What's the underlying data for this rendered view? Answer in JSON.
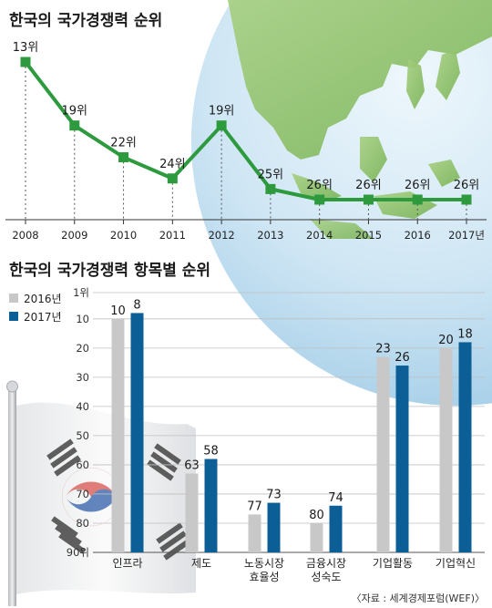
{
  "chart_data": [
    {
      "type": "line",
      "title": "한국의 국가경쟁력 순위",
      "x": [
        "2008",
        "2009",
        "2010",
        "2011",
        "2012",
        "2013",
        "2014",
        "2015",
        "2016",
        "2017년"
      ],
      "values": [
        13,
        19,
        22,
        24,
        19,
        25,
        26,
        26,
        26,
        26
      ],
      "data_labels": [
        "13위",
        "19위",
        "22위",
        "24위",
        "19위",
        "25위",
        "26위",
        "26위",
        "26위",
        "26위"
      ],
      "y_inverted": true,
      "ylim": [
        12,
        27
      ],
      "grid": false,
      "line_color": "#2e9a3e"
    },
    {
      "type": "bar",
      "title": "한국의 국가경쟁력 항목별 순위",
      "categories": [
        "인프라",
        "제도",
        "노동시장\n효율성",
        "금융시장\n성숙도",
        "기업활동",
        "기업혁신"
      ],
      "series": [
        {
          "name": "2016년",
          "values": [
            10,
            63,
            77,
            80,
            23,
            20
          ],
          "color": "#c8c8c8"
        },
        {
          "name": "2017년",
          "values": [
            8,
            58,
            73,
            74,
            26,
            18
          ],
          "color": "#0b5f96"
        }
      ],
      "y_inverted": true,
      "ylim": [
        1,
        90
      ],
      "y_ticks": [
        "1위",
        "10",
        "20",
        "30",
        "40",
        "50",
        "60",
        "70",
        "80",
        "90위"
      ],
      "y_tick_values": [
        1,
        10,
        20,
        30,
        40,
        50,
        60,
        70,
        80,
        90
      ],
      "legend_position": "top-left",
      "grid": true
    }
  ],
  "source": "〈자료 : 세계경제포럼(WEF)〉"
}
